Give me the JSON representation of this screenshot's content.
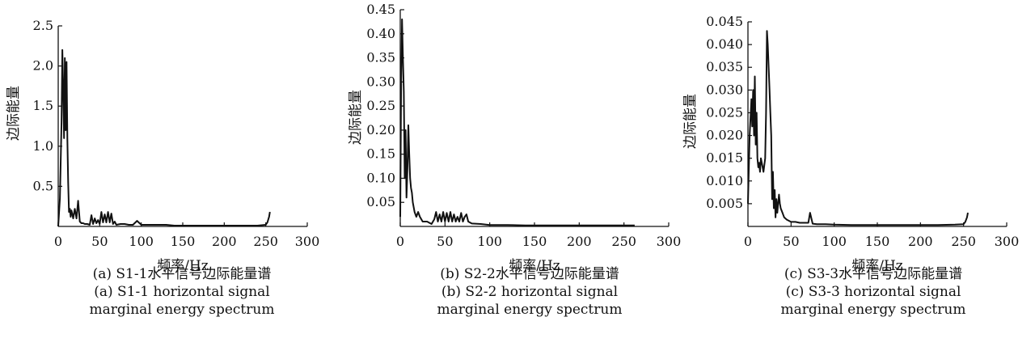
{
  "chart_data": [
    {
      "type": "line",
      "xlabel": "频率/Hz",
      "ylabel": "边际能量",
      "xlim": [
        0,
        300
      ],
      "ylim": [
        0,
        2.5
      ],
      "xticks": [
        "0",
        "50",
        "100",
        "150",
        "200",
        "250",
        "300"
      ],
      "yticks": [
        "0.5",
        "1.0",
        "1.5",
        "2.0",
        "2.5"
      ],
      "caption_zh": "(a) S1-1水平信号边际能量谱",
      "caption_en1": "(a) S1-1 horizontal signal",
      "caption_en2": "marginal energy spectrum",
      "x": [
        0,
        2,
        4,
        5,
        6,
        7,
        8,
        9,
        10,
        11,
        12,
        13,
        14,
        15,
        16,
        18,
        20,
        22,
        24,
        26,
        28,
        30,
        32,
        35,
        38,
        40,
        42,
        44,
        46,
        48,
        50,
        52,
        54,
        56,
        58,
        60,
        62,
        64,
        66,
        68,
        70,
        75,
        80,
        85,
        90,
        95,
        100,
        110,
        120,
        130,
        140,
        150,
        160,
        170,
        180,
        190,
        200,
        210,
        220,
        230,
        240,
        250,
        252,
        254,
        255
      ],
      "y": [
        0,
        0.35,
        1.3,
        2.2,
        1.7,
        1.1,
        2.1,
        1.2,
        2.05,
        1.1,
        0.55,
        0.18,
        0.22,
        0.12,
        0.2,
        0.1,
        0.22,
        0.1,
        0.32,
        0.06,
        0.04,
        0.04,
        0.03,
        0.03,
        0.02,
        0.14,
        0.03,
        0.1,
        0.04,
        0.08,
        0.03,
        0.18,
        0.05,
        0.15,
        0.05,
        0.18,
        0.05,
        0.16,
        0.03,
        0.06,
        0.02,
        0.03,
        0.03,
        0.02,
        0.02,
        0.07,
        0.02,
        0.02,
        0.02,
        0.02,
        0.01,
        0.01,
        0.01,
        0.01,
        0.01,
        0.01,
        0.01,
        0.01,
        0.01,
        0.01,
        0.01,
        0.02,
        0.05,
        0.12,
        0.18
      ]
    },
    {
      "type": "line",
      "xlabel": "频率/Hz",
      "ylabel": "边际能量",
      "xlim": [
        0,
        300
      ],
      "ylim": [
        0,
        0.45
      ],
      "xticks": [
        "0",
        "50",
        "100",
        "150",
        "200",
        "250",
        "300"
      ],
      "yticks": [
        "0.05",
        "0.10",
        "0.15",
        "0.20",
        "0.25",
        "0.30",
        "0.35",
        "0.40",
        "0.45"
      ],
      "caption_zh": "(b) S2-2水平信号边际能量谱",
      "caption_en1": "(b) S2-2 horizontal signal",
      "caption_en2": "marginal energy spectrum",
      "x": [
        0,
        1,
        2,
        3,
        4,
        5,
        6,
        7,
        8,
        9,
        10,
        11,
        12,
        13,
        14,
        16,
        18,
        20,
        22,
        25,
        30,
        35,
        38,
        40,
        42,
        44,
        46,
        48,
        50,
        52,
        54,
        56,
        58,
        60,
        62,
        64,
        66,
        68,
        70,
        72,
        74,
        76,
        80,
        90,
        100,
        120,
        140,
        160,
        180,
        200,
        220,
        240,
        260,
        262
      ],
      "y": [
        0.02,
        0.3,
        0.43,
        0.35,
        0.28,
        0.1,
        0.2,
        0.06,
        0.12,
        0.21,
        0.15,
        0.1,
        0.08,
        0.07,
        0.05,
        0.03,
        0.02,
        0.03,
        0.02,
        0.01,
        0.01,
        0.005,
        0.015,
        0.03,
        0.01,
        0.025,
        0.01,
        0.03,
        0.01,
        0.028,
        0.01,
        0.03,
        0.01,
        0.025,
        0.01,
        0.02,
        0.01,
        0.028,
        0.01,
        0.02,
        0.025,
        0.01,
        0.006,
        0.005,
        0.003,
        0.003,
        0.002,
        0.002,
        0.002,
        0.002,
        0.002,
        0.002,
        0.002,
        0.002
      ]
    },
    {
      "type": "line",
      "xlabel": "频率/Hz",
      "ylabel": "边际能量",
      "xlim": [
        0,
        300
      ],
      "ylim": [
        0,
        0.045
      ],
      "xticks": [
        "0",
        "50",
        "100",
        "150",
        "200",
        "250",
        "300"
      ],
      "yticks": [
        "0.005",
        "0.010",
        "0.015",
        "0.020",
        "0.025",
        "0.030",
        "0.035",
        "0.040",
        "0.045"
      ],
      "caption_zh": "(c) S3-3水平信号边际能量谱",
      "caption_en1": "(c) S3-3 horizontal signal",
      "caption_en2": "marginal energy spectrum",
      "x": [
        0,
        2,
        4,
        5,
        6,
        7,
        8,
        9,
        10,
        11,
        12,
        13,
        14,
        15,
        16,
        18,
        20,
        21,
        22,
        23,
        24,
        25,
        26,
        27,
        28,
        29,
        30,
        31,
        32,
        33,
        34,
        35,
        36,
        37,
        38,
        40,
        42,
        45,
        50,
        55,
        60,
        65,
        70,
        72,
        75,
        80,
        90,
        100,
        120,
        140,
        160,
        180,
        200,
        220,
        240,
        250,
        252,
        254,
        255
      ],
      "y": [
        0.005,
        0.02,
        0.028,
        0.022,
        0.03,
        0.02,
        0.033,
        0.018,
        0.025,
        0.015,
        0.013,
        0.014,
        0.012,
        0.015,
        0.014,
        0.012,
        0.015,
        0.025,
        0.043,
        0.04,
        0.035,
        0.03,
        0.025,
        0.02,
        0.006,
        0.012,
        0.004,
        0.008,
        0.002,
        0.006,
        0.003,
        0.005,
        0.007,
        0.005,
        0.004,
        0.003,
        0.002,
        0.0015,
        0.001,
        0.001,
        0.0008,
        0.0008,
        0.0008,
        0.003,
        0.0006,
        0.0005,
        0.0005,
        0.0004,
        0.0003,
        0.0003,
        0.0003,
        0.0003,
        0.0003,
        0.0003,
        0.0004,
        0.0005,
        0.001,
        0.002,
        0.003
      ]
    }
  ]
}
